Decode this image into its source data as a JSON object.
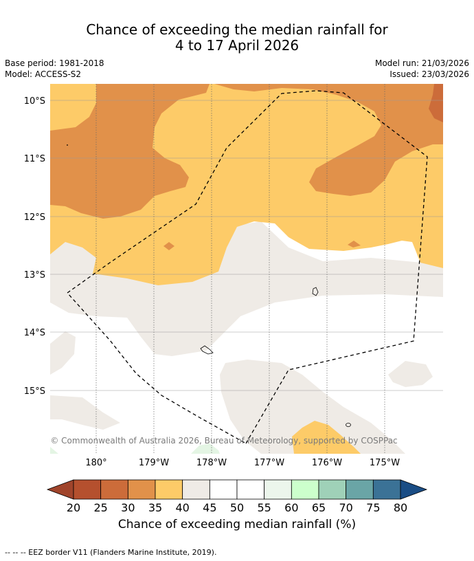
{
  "title": {
    "line1": "Chance of exceeding the median rainfall for",
    "line2": "4 to 17 April 2026"
  },
  "meta": {
    "base_period": "Base period: 1981-2018",
    "model": "Model: ACCESS-S2",
    "model_run": "Model run: 21/03/2026",
    "issued": "Issued: 23/03/2026"
  },
  "map": {
    "lat_labels": [
      "10°S",
      "11°S",
      "12°S",
      "13°S",
      "14°S",
      "15°S"
    ],
    "lon_labels": [
      "180°",
      "179°W",
      "178°W",
      "177°W",
      "176°W",
      "175°W"
    ],
    "copyright": "© Commonwealth of Australia 2026, Bureau of Meteorology, supported by COSPPac"
  },
  "legend": {
    "title": "Chance of exceeding median rainfall (%)",
    "ticks": [
      "20",
      "25",
      "30",
      "35",
      "40",
      "45",
      "50",
      "55",
      "60",
      "65",
      "70",
      "75",
      "80"
    ],
    "colors": [
      "#a0442b",
      "#b5502e",
      "#cc6c3a",
      "#e1914a",
      "#fdcb68",
      "#efebe6",
      "#ffffff",
      "#ffffff",
      "#ecf6ec",
      "#ccffcc",
      "#9fd1b8",
      "#6aa5a6",
      "#3b7296",
      "#1a4d85"
    ]
  },
  "footer": "--  --  -- EEZ border V11 (Flanders Marine Institute, 2019)."
}
